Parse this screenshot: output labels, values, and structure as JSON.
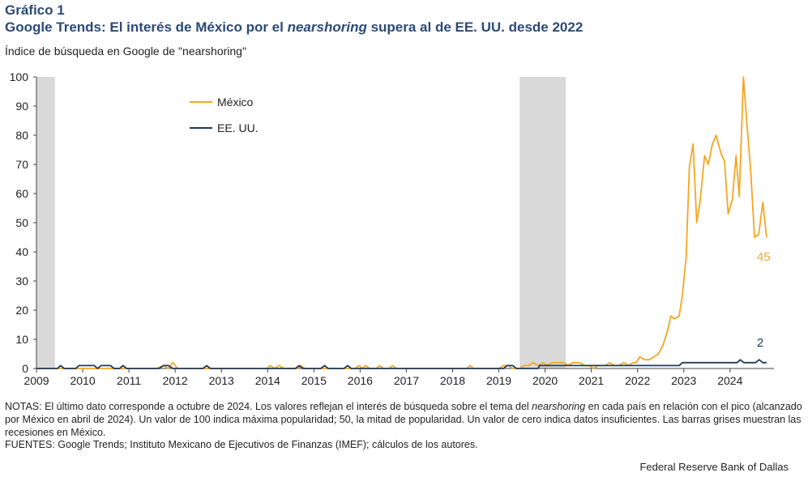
{
  "header": {
    "label": "Gráfico 1",
    "title_part1": "Google Trends: El interés de México por el ",
    "title_italic": "nearshoring",
    "title_part2": " supera al de EE. UU.  desde 2022"
  },
  "notes": {
    "part1": "NOTAS: El último dato corresponde a octubre de 2024. Los valores reflejan el interés de búsqueda sobre el tema del ",
    "italic": "nearshoring",
    "part2": " en cada país en relación con el pico (alcanzado por México en abril de 2024). Un valor de 100 indica máxima popularidad; 50, la mitad de popularidad. Un valor de cero indica datos insuficientes. Las barras grises muestran las recesiones en México."
  },
  "sources": "FUENTES: Google Trends; Instituto Mexicano de Ejecutivos de Finanzas (IMEF); cálculos de los autores.",
  "footer": "Federal Reserve Bank of Dallas",
  "colors": {
    "mexico": "#f5a623",
    "usa": "#1f3a5f",
    "recession": "#d9d9d9",
    "title": "#2b4a78"
  },
  "chart_data": {
    "type": "line",
    "title": "Google Trends: El interés de México por el nearshoring supera al de EE. UU.  desde 2022",
    "ylabel": "Índice de búsqueda en Google de \"nearshoring\"",
    "xlabel": "",
    "xlim": [
      2009.0,
      2024.95
    ],
    "ylim": [
      0,
      100
    ],
    "yticks": [
      0,
      10,
      20,
      30,
      40,
      50,
      60,
      70,
      80,
      90,
      100
    ],
    "xticks": [
      "2009",
      "2010",
      "2011",
      "2012",
      "2013",
      "2014",
      "2015",
      "2016",
      "2017",
      "2018",
      "2019",
      "2020",
      "2021",
      "2022",
      "2023",
      "2024"
    ],
    "grid": false,
    "legend_position": "top-left",
    "recessions": [
      [
        2009.0,
        2009.4
      ],
      [
        2019.45,
        2020.45
      ]
    ],
    "series": [
      {
        "name": "México",
        "color": "#f5a623",
        "end_label": "45",
        "points": [
          [
            2009.0,
            0
          ],
          [
            2011.6,
            0
          ],
          [
            2011.75,
            1
          ],
          [
            2011.85,
            0
          ],
          [
            2011.95,
            2
          ],
          [
            2012.05,
            0
          ],
          [
            2014.0,
            0
          ],
          [
            2014.05,
            1
          ],
          [
            2014.15,
            0
          ],
          [
            2014.25,
            1
          ],
          [
            2014.35,
            0
          ],
          [
            2014.65,
            0
          ],
          [
            2014.72,
            1
          ],
          [
            2014.8,
            0
          ],
          [
            2015.9,
            0
          ],
          [
            2015.97,
            1
          ],
          [
            2016.05,
            0
          ],
          [
            2016.12,
            1
          ],
          [
            2016.2,
            0
          ],
          [
            2016.35,
            0
          ],
          [
            2016.42,
            1
          ],
          [
            2016.5,
            0
          ],
          [
            2016.62,
            0
          ],
          [
            2016.7,
            1
          ],
          [
            2016.78,
            0
          ],
          [
            2018.3,
            0
          ],
          [
            2018.38,
            1
          ],
          [
            2018.45,
            0
          ],
          [
            2019.0,
            0
          ],
          [
            2019.1,
            1
          ],
          [
            2019.2,
            1
          ],
          [
            2019.3,
            0
          ],
          [
            2019.45,
            0
          ],
          [
            2019.55,
            1
          ],
          [
            2019.65,
            1
          ],
          [
            2019.75,
            2
          ],
          [
            2019.85,
            1
          ],
          [
            2019.95,
            2
          ],
          [
            2020.05,
            1
          ],
          [
            2020.15,
            2
          ],
          [
            2020.3,
            2
          ],
          [
            2020.4,
            2
          ],
          [
            2020.5,
            1
          ],
          [
            2020.6,
            2
          ],
          [
            2020.75,
            2
          ],
          [
            2020.85,
            1
          ],
          [
            2020.95,
            1
          ],
          [
            2021.05,
            0
          ],
          [
            2021.15,
            1
          ],
          [
            2021.3,
            1
          ],
          [
            2021.4,
            2
          ],
          [
            2021.5,
            1
          ],
          [
            2021.6,
            1
          ],
          [
            2021.7,
            2
          ],
          [
            2021.8,
            1
          ],
          [
            2021.9,
            2
          ],
          [
            2021.97,
            2
          ],
          [
            2022.05,
            4
          ],
          [
            2022.15,
            3
          ],
          [
            2022.25,
            3
          ],
          [
            2022.35,
            4
          ],
          [
            2022.45,
            5
          ],
          [
            2022.55,
            8
          ],
          [
            2022.65,
            13
          ],
          [
            2022.72,
            18
          ],
          [
            2022.8,
            17
          ],
          [
            2022.9,
            18
          ],
          [
            2022.97,
            25
          ],
          [
            2023.05,
            38
          ],
          [
            2023.12,
            69
          ],
          [
            2023.2,
            77
          ],
          [
            2023.28,
            50
          ],
          [
            2023.35,
            57
          ],
          [
            2023.45,
            73
          ],
          [
            2023.53,
            70
          ],
          [
            2023.62,
            77
          ],
          [
            2023.7,
            80
          ],
          [
            2023.8,
            74
          ],
          [
            2023.88,
            71
          ],
          [
            2023.96,
            53
          ],
          [
            2024.05,
            58
          ],
          [
            2024.13,
            73
          ],
          [
            2024.2,
            59
          ],
          [
            2024.29,
            100
          ],
          [
            2024.37,
            83
          ],
          [
            2024.45,
            67
          ],
          [
            2024.53,
            45
          ],
          [
            2024.62,
            46
          ],
          [
            2024.71,
            57
          ],
          [
            2024.79,
            45
          ]
        ]
      },
      {
        "name": "EE. UU.",
        "color": "#1f3a5f",
        "end_label": "2",
        "points": [
          [
            2009.0,
            0
          ],
          [
            2009.45,
            0
          ],
          [
            2009.52,
            1
          ],
          [
            2009.6,
            0
          ],
          [
            2009.85,
            0
          ],
          [
            2009.92,
            1
          ],
          [
            2010.25,
            1
          ],
          [
            2010.32,
            0
          ],
          [
            2010.4,
            1
          ],
          [
            2010.6,
            1
          ],
          [
            2010.68,
            0
          ],
          [
            2010.8,
            0
          ],
          [
            2010.87,
            1
          ],
          [
            2010.95,
            0
          ],
          [
            2011.65,
            0
          ],
          [
            2011.75,
            1
          ],
          [
            2011.85,
            1
          ],
          [
            2011.95,
            0
          ],
          [
            2012.6,
            0
          ],
          [
            2012.68,
            1
          ],
          [
            2012.76,
            0
          ],
          [
            2014.6,
            0
          ],
          [
            2014.68,
            1
          ],
          [
            2014.76,
            0
          ],
          [
            2015.15,
            0
          ],
          [
            2015.23,
            1
          ],
          [
            2015.31,
            0
          ],
          [
            2015.65,
            0
          ],
          [
            2015.73,
            1
          ],
          [
            2015.81,
            0
          ],
          [
            2019.1,
            0
          ],
          [
            2019.18,
            1
          ],
          [
            2019.3,
            1
          ],
          [
            2019.38,
            0
          ],
          [
            2019.85,
            0
          ],
          [
            2019.88,
            1
          ],
          [
            2022.9,
            1
          ],
          [
            2022.97,
            2
          ],
          [
            2024.15,
            2
          ],
          [
            2024.22,
            3
          ],
          [
            2024.3,
            2
          ],
          [
            2024.55,
            2
          ],
          [
            2024.63,
            3
          ],
          [
            2024.71,
            2
          ],
          [
            2024.79,
            2
          ]
        ]
      }
    ]
  }
}
